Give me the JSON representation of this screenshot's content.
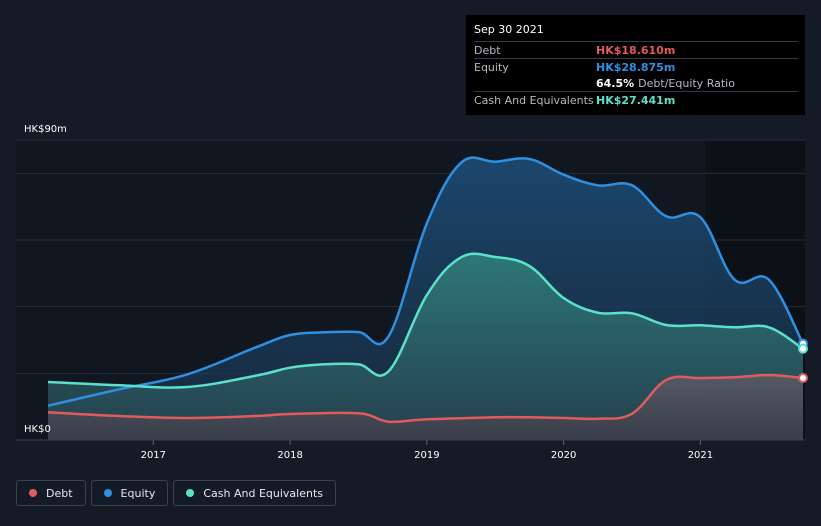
{
  "chart_data": {
    "type": "area",
    "y_axis": {
      "top_label": "HK$90m",
      "bottom_label": "HK$0",
      "ylim": [
        0,
        90
      ]
    },
    "x_ticks": [
      "2017",
      "2018",
      "2019",
      "2020",
      "2021"
    ],
    "x_range": [
      2016.23,
      2021.75
    ],
    "series": [
      {
        "name": "Debt",
        "color": "#e05c5c",
        "points": [
          [
            2016.23,
            8.3
          ],
          [
            2016.75,
            7.2
          ],
          [
            2017.25,
            6.6
          ],
          [
            2017.75,
            7.2
          ],
          [
            2018.0,
            7.8
          ],
          [
            2018.5,
            8.0
          ],
          [
            2018.72,
            5.5
          ],
          [
            2019.0,
            6.2
          ],
          [
            2019.5,
            6.8
          ],
          [
            2019.75,
            6.8
          ],
          [
            2020.0,
            6.6
          ],
          [
            2020.25,
            6.4
          ],
          [
            2020.5,
            7.9
          ],
          [
            2020.75,
            18.0
          ],
          [
            2021.0,
            18.6
          ],
          [
            2021.25,
            18.8
          ],
          [
            2021.5,
            19.5
          ],
          [
            2021.75,
            18.6
          ]
        ]
      },
      {
        "name": "Equity",
        "color": "#2f8fe0",
        "points": [
          [
            2016.23,
            10.3
          ],
          [
            2016.75,
            15.2
          ],
          [
            2017.25,
            19.7
          ],
          [
            2017.75,
            27.8
          ],
          [
            2018.0,
            31.5
          ],
          [
            2018.25,
            32.3
          ],
          [
            2018.5,
            32.4
          ],
          [
            2018.72,
            31.1
          ],
          [
            2019.0,
            65.0
          ],
          [
            2019.25,
            83.2
          ],
          [
            2019.5,
            83.5
          ],
          [
            2019.75,
            84.3
          ],
          [
            2020.0,
            79.6
          ],
          [
            2020.25,
            76.4
          ],
          [
            2020.5,
            76.4
          ],
          [
            2020.75,
            67.1
          ],
          [
            2021.0,
            66.8
          ],
          [
            2021.25,
            48.1
          ],
          [
            2021.5,
            48.1
          ],
          [
            2021.75,
            28.9
          ]
        ]
      },
      {
        "name": "Cash And Equivalents",
        "color": "#5ce0cc",
        "points": [
          [
            2016.23,
            17.4
          ],
          [
            2016.75,
            16.4
          ],
          [
            2017.25,
            15.9
          ],
          [
            2017.75,
            19.3
          ],
          [
            2018.0,
            21.7
          ],
          [
            2018.25,
            22.7
          ],
          [
            2018.5,
            22.7
          ],
          [
            2018.72,
            20.6
          ],
          [
            2019.0,
            43.5
          ],
          [
            2019.25,
            54.8
          ],
          [
            2019.5,
            54.9
          ],
          [
            2019.75,
            52.2
          ],
          [
            2020.0,
            42.6
          ],
          [
            2020.25,
            38.2
          ],
          [
            2020.5,
            38.0
          ],
          [
            2020.75,
            34.5
          ],
          [
            2021.0,
            34.4
          ],
          [
            2021.25,
            33.8
          ],
          [
            2021.5,
            33.8
          ],
          [
            2021.75,
            27.4
          ]
        ]
      }
    ]
  },
  "tooltip": {
    "date": "Sep 30 2021",
    "debt_label": "Debt",
    "debt_value": "HK$18.610m",
    "equity_label": "Equity",
    "equity_value": "HK$28.875m",
    "ratio_value": "64.5%",
    "ratio_label": "Debt/Equity Ratio",
    "cash_label": "Cash And Equivalents",
    "cash_value": "HK$27.441m"
  },
  "legend": [
    {
      "label": "Debt",
      "color": "#e05c5c"
    },
    {
      "label": "Equity",
      "color": "#2f8fe0"
    },
    {
      "label": "Cash And Equivalents",
      "color": "#5ce0cc"
    }
  ]
}
